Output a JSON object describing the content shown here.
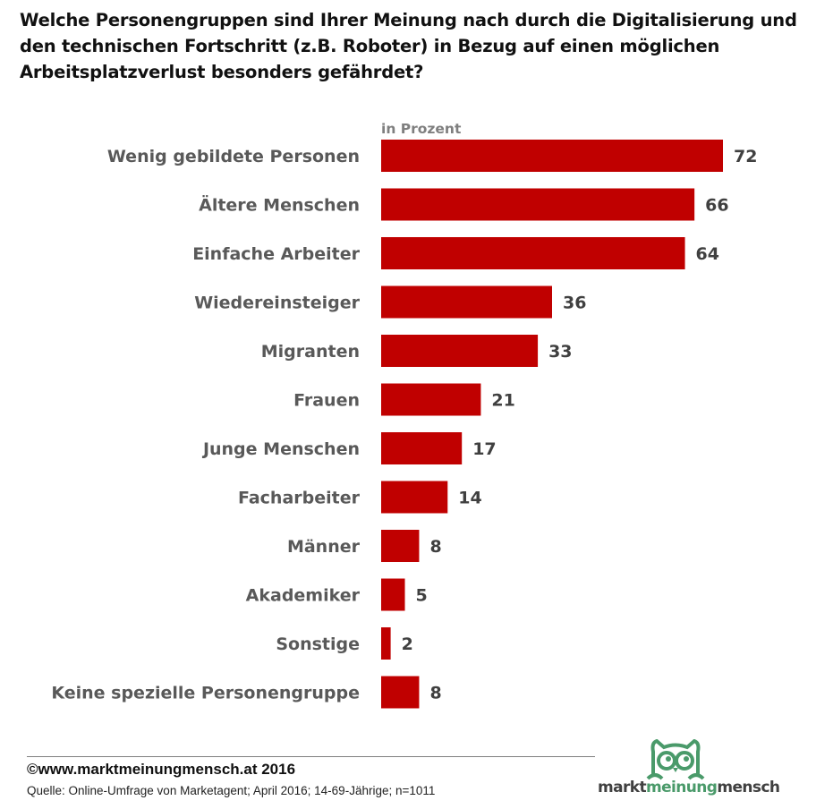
{
  "title": "Welche Personengruppen sind Ihrer Meinung nach durch die Digitalisierung und den technischen Fortschritt (z.B. Roboter) in Bezug auf einen möglichen Arbeitsplatzverlust besonders gefährdet?",
  "chart_data": {
    "type": "bar",
    "orientation": "horizontal",
    "unit_label": "in Prozent",
    "categories": [
      "Wenig gebildete Personen",
      "Ältere Menschen",
      "Einfache Arbeiter",
      "Wiedereinsteiger",
      "Migranten",
      "Frauen",
      "Junge Menschen",
      "Facharbeiter",
      "Männer",
      "Akademiker",
      "Sonstige",
      "Keine spezielle Personengruppe"
    ],
    "values": [
      72,
      66,
      64,
      36,
      33,
      21,
      17,
      14,
      8,
      5,
      2,
      8
    ],
    "xlim": [
      0,
      72
    ],
    "grid": false,
    "bar_color": "#c00000"
  },
  "footer": {
    "copyright": "©www.marktmeinungmensch.at 2016",
    "source": "Quelle: Online-Umfrage von Marketagent; April 2016; 14-69-Jährige; n=1011"
  },
  "logo": {
    "part1": "markt",
    "part2": "meinung",
    "part3": "mensch",
    "color": "#4a9a6a"
  }
}
